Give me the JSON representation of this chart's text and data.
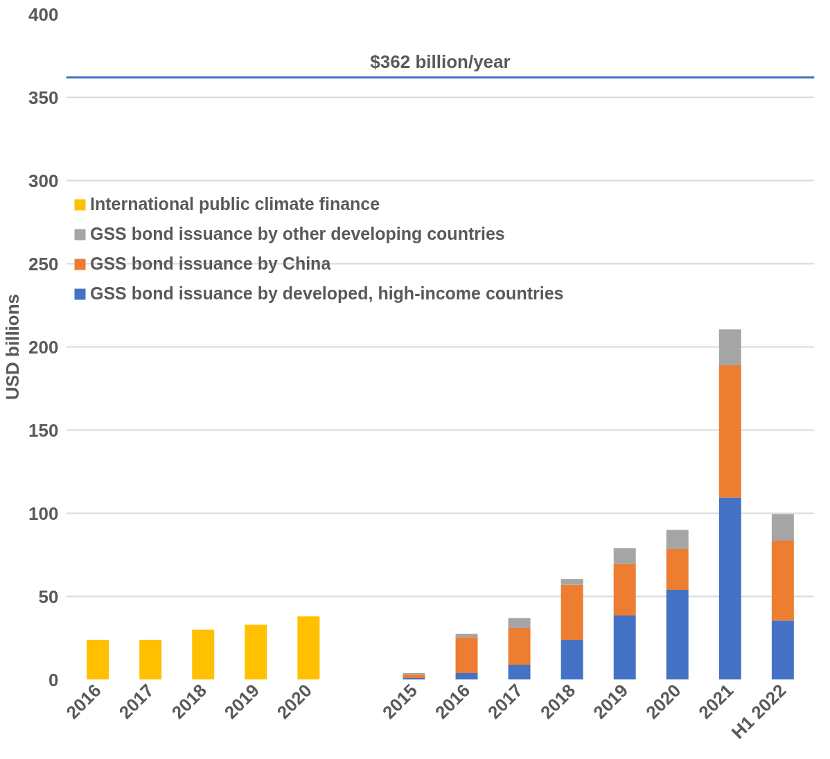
{
  "chart_data": {
    "type": "bar",
    "stacked": true,
    "ylabel": "USD billions",
    "categories": [
      "2016",
      "2017",
      "2018",
      "2019",
      "2020",
      null,
      "2015",
      "2016",
      "2017",
      "2018",
      "2019",
      "2020",
      "2021",
      "H1 2022"
    ],
    "series": [
      {
        "name": "GSS bond issuance by developed, high-income countries",
        "color": "#4472c4",
        "values": [
          null,
          null,
          null,
          null,
          null,
          null,
          1,
          4,
          9,
          24,
          38.5,
          54,
          109.5,
          35.5
        ]
      },
      {
        "name": "GSS bond issuance by China",
        "color": "#ed7d31",
        "values": [
          null,
          null,
          null,
          null,
          null,
          null,
          2,
          21.5,
          22,
          33,
          31,
          24.5,
          79.5,
          48
        ]
      },
      {
        "name": "GSS bond issuance by other developing countries",
        "color": "#a5a5a5",
        "values": [
          null,
          null,
          null,
          null,
          null,
          null,
          1,
          2,
          6,
          3.5,
          9.5,
          11.5,
          21.5,
          16
        ]
      },
      {
        "name": "International public climate finance",
        "color": "#ffc000",
        "values": [
          24,
          24,
          30,
          33,
          38,
          null,
          null,
          null,
          null,
          null,
          null,
          null,
          null,
          null
        ]
      }
    ],
    "ylim": [
      0,
      400
    ],
    "yticks": [
      0,
      50,
      100,
      150,
      200,
      250,
      300,
      350,
      400
    ],
    "grid": "y",
    "legend": "top left",
    "ref_lines": [
      {
        "axis": "y",
        "value": 362,
        "label": "$362 billion/year",
        "color": "#4472c4"
      }
    ]
  }
}
